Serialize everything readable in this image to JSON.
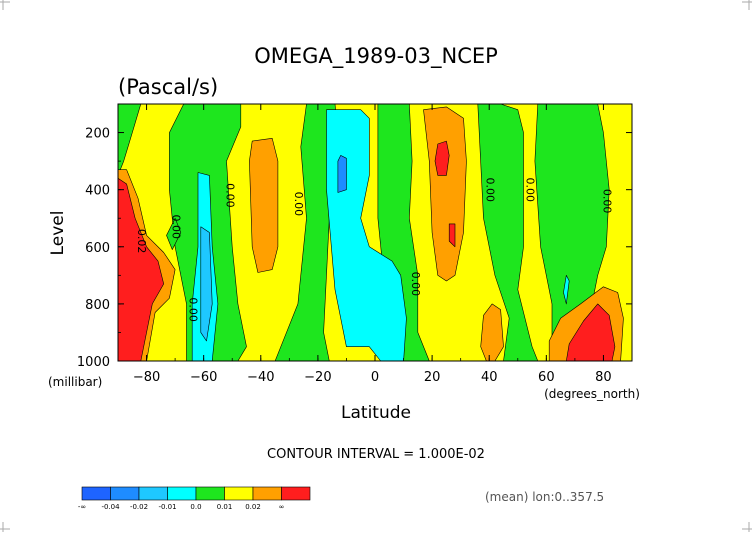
{
  "chart_data": {
    "type": "contour",
    "title": "OMEGA_1989-03_NCEP",
    "subtitle": "(Pascal/s)",
    "xlabel": "Latitude",
    "xunits": "(degrees_north)",
    "ylabel": "Level",
    "yunits": "(millibar)",
    "xlim": [
      -90,
      90
    ],
    "ylim": [
      1000,
      100
    ],
    "xticks": [
      -80,
      -60,
      -40,
      -20,
      0,
      20,
      40,
      60,
      80
    ],
    "yticks": [
      200,
      400,
      600,
      800,
      1000
    ],
    "contour_interval_label": "CONTOUR INTERVAL = 1.000E-02",
    "footer_note": "(mean) lon:0..357.5",
    "contour_labels": [
      {
        "text": "0.00",
        "lat": -52,
        "level": 420
      },
      {
        "text": "0.00",
        "lat": -28,
        "level": 450
      },
      {
        "text": "0.00",
        "lat": 13,
        "level": 730
      },
      {
        "text": "0.00",
        "lat": 39,
        "level": 400
      },
      {
        "text": "0.00",
        "lat": 53,
        "level": 400
      },
      {
        "text": "0.00",
        "lat": 80,
        "level": 440
      },
      {
        "text": "0.00",
        "lat": -71,
        "level": 530
      },
      {
        "text": "0.02",
        "lat": -83,
        "level": 580
      },
      {
        "text": "0.00",
        "lat": -65,
        "level": 820
      }
    ],
    "colorbar": {
      "colors": [
        "#1e64ff",
        "#1e8cff",
        "#1ec8ff",
        "#00ffff",
        "#1ee61e",
        "#ffff00",
        "#ffa000",
        "#ff1e1e"
      ],
      "labels": [
        "-∞",
        "-0.04",
        "-0.02",
        "-0.01",
        "0.0",
        "0.01",
        "0.02",
        "∞"
      ]
    },
    "regions": [
      {
        "color": "#1ee61e",
        "points": [
          [
            -67,
            100
          ],
          [
            -47,
            100
          ],
          [
            -47,
            180
          ],
          [
            -52,
            300
          ],
          [
            -50,
            600
          ],
          [
            -48,
            800
          ],
          [
            -45,
            950
          ],
          [
            -48,
            1000
          ],
          [
            -66,
            1000
          ],
          [
            -66,
            800
          ],
          [
            -70,
            600
          ],
          [
            -72,
            400
          ],
          [
            -72,
            200
          ]
        ]
      },
      {
        "color": "#1ee61e",
        "points": [
          [
            -90,
            100
          ],
          [
            -82,
            100
          ],
          [
            -85,
            200
          ],
          [
            -88,
            300
          ],
          [
            -90,
            350
          ]
        ]
      },
      {
        "color": "#1ee61e",
        "points": [
          [
            -33,
            950
          ],
          [
            -27,
            800
          ],
          [
            -24,
            500
          ],
          [
            -26,
            250
          ],
          [
            -24,
            100
          ],
          [
            -14,
            100
          ],
          [
            -13,
            200
          ],
          [
            -16,
            500
          ],
          [
            -18,
            900
          ],
          [
            -16,
            1000
          ],
          [
            -35,
            1000
          ]
        ]
      },
      {
        "color": "#1ee61e",
        "points": [
          [
            1,
            100
          ],
          [
            12,
            100
          ],
          [
            13,
            300
          ],
          [
            12,
            500
          ],
          [
            15,
            700
          ],
          [
            15,
            900
          ],
          [
            19,
            1000
          ],
          [
            2,
            1000
          ],
          [
            3,
            700
          ],
          [
            1,
            500
          ],
          [
            1,
            300
          ]
        ]
      },
      {
        "color": "#1ee61e",
        "points": [
          [
            36,
            100
          ],
          [
            44,
            100
          ],
          [
            50,
            120
          ],
          [
            52,
            200
          ],
          [
            52,
            600
          ],
          [
            50,
            750
          ],
          [
            55,
            950
          ],
          [
            57,
            1000
          ],
          [
            45,
            1000
          ],
          [
            47,
            850
          ],
          [
            42,
            700
          ],
          [
            38,
            500
          ]
        ]
      },
      {
        "color": "#1ee61e",
        "points": [
          [
            57,
            100
          ],
          [
            78,
            100
          ],
          [
            80,
            200
          ],
          [
            82,
            400
          ],
          [
            81,
            600
          ],
          [
            78,
            700
          ],
          [
            73,
            950
          ],
          [
            70,
            1000
          ],
          [
            62,
            1000
          ],
          [
            62,
            800
          ],
          [
            58,
            600
          ],
          [
            56,
            300
          ]
        ]
      },
      {
        "color": "#1ee61e",
        "points": [
          [
            -70,
            500
          ],
          [
            -68,
            550
          ],
          [
            -71,
            610
          ],
          [
            -73,
            560
          ]
        ]
      },
      {
        "color": "#00ffff",
        "points": [
          [
            -17,
            120
          ],
          [
            -5,
            120
          ],
          [
            -2,
            150
          ],
          [
            -2,
            350
          ],
          [
            -5,
            500
          ],
          [
            -2,
            600
          ],
          [
            6,
            650
          ],
          [
            9,
            700
          ],
          [
            11,
            850
          ],
          [
            10,
            1000
          ],
          [
            2,
            1000
          ],
          [
            -2,
            950
          ],
          [
            -10,
            950
          ],
          [
            -14,
            750
          ],
          [
            -17,
            400
          ]
        ]
      },
      {
        "color": "#00ffff",
        "points": [
          [
            -62,
            340
          ],
          [
            -58,
            350
          ],
          [
            -57,
            600
          ],
          [
            -55,
            800
          ],
          [
            -57,
            1000
          ],
          [
            -64,
            1000
          ],
          [
            -64,
            800
          ],
          [
            -62,
            600
          ]
        ]
      },
      {
        "color": "#1e8cff",
        "points": [
          [
            -12,
            280
          ],
          [
            -10,
            290
          ],
          [
            -10,
            400
          ],
          [
            -13,
            410
          ],
          [
            -13,
            300
          ]
        ]
      },
      {
        "color": "#1ec8ff",
        "points": [
          [
            -61,
            530
          ],
          [
            -58,
            550
          ],
          [
            -57,
            800
          ],
          [
            -59,
            930
          ],
          [
            -61,
            900
          ],
          [
            -61,
            700
          ]
        ]
      },
      {
        "color": "#00ffff",
        "points": [
          [
            67,
            700
          ],
          [
            68,
            720
          ],
          [
            67,
            800
          ],
          [
            66,
            760
          ]
        ]
      },
      {
        "color": "#ffa000",
        "points": [
          [
            -43,
            230
          ],
          [
            -36,
            220
          ],
          [
            -34,
            300
          ],
          [
            -34,
            600
          ],
          [
            -36,
            680
          ],
          [
            -41,
            690
          ],
          [
            -43,
            600
          ],
          [
            -44,
            300
          ]
        ]
      },
      {
        "color": "#ffa000",
        "points": [
          [
            17,
            120
          ],
          [
            25,
            110
          ],
          [
            31,
            150
          ],
          [
            32,
            300
          ],
          [
            31,
            550
          ],
          [
            28,
            700
          ],
          [
            25,
            720
          ],
          [
            22,
            700
          ],
          [
            20,
            550
          ],
          [
            19,
            300
          ]
        ]
      },
      {
        "color": "#ffa000",
        "points": [
          [
            38,
            840
          ],
          [
            41,
            800
          ],
          [
            44,
            820
          ],
          [
            45,
            950
          ],
          [
            42,
            1000
          ],
          [
            39,
            1000
          ],
          [
            37,
            950
          ]
        ]
      },
      {
        "color": "#ffa000",
        "points": [
          [
            61,
            930
          ],
          [
            65,
            850
          ],
          [
            72,
            800
          ],
          [
            80,
            740
          ],
          [
            85,
            760
          ],
          [
            87,
            850
          ],
          [
            86,
            1000
          ],
          [
            61,
            1000
          ]
        ]
      },
      {
        "color": "#ffa000",
        "points": [
          [
            -90,
            330
          ],
          [
            -87,
            330
          ],
          [
            -83,
            430
          ],
          [
            -80,
            560
          ],
          [
            -74,
            620
          ],
          [
            -70,
            680
          ],
          [
            -72,
            780
          ],
          [
            -77,
            830
          ],
          [
            -80,
            1000
          ],
          [
            -90,
            1000
          ]
        ]
      },
      {
        "color": "#ff1e1e",
        "points": [
          [
            -90,
            360
          ],
          [
            -87,
            380
          ],
          [
            -84,
            500
          ],
          [
            -80,
            600
          ],
          [
            -76,
            650
          ],
          [
            -74,
            730
          ],
          [
            -78,
            800
          ],
          [
            -82,
            1000
          ],
          [
            -90,
            1000
          ]
        ]
      },
      {
        "color": "#ff1e1e",
        "points": [
          [
            22,
            240
          ],
          [
            25,
            230
          ],
          [
            26,
            280
          ],
          [
            25,
            350
          ],
          [
            22,
            350
          ],
          [
            21,
            300
          ]
        ]
      },
      {
        "color": "#ff1e1e",
        "points": [
          [
            26,
            520
          ],
          [
            28,
            520
          ],
          [
            28,
            600
          ],
          [
            26,
            580
          ]
        ]
      },
      {
        "color": "#ff1e1e",
        "points": [
          [
            68,
            940
          ],
          [
            73,
            860
          ],
          [
            78,
            800
          ],
          [
            82,
            840
          ],
          [
            84,
            950
          ],
          [
            83,
            1000
          ],
          [
            67,
            1000
          ]
        ]
      }
    ]
  }
}
